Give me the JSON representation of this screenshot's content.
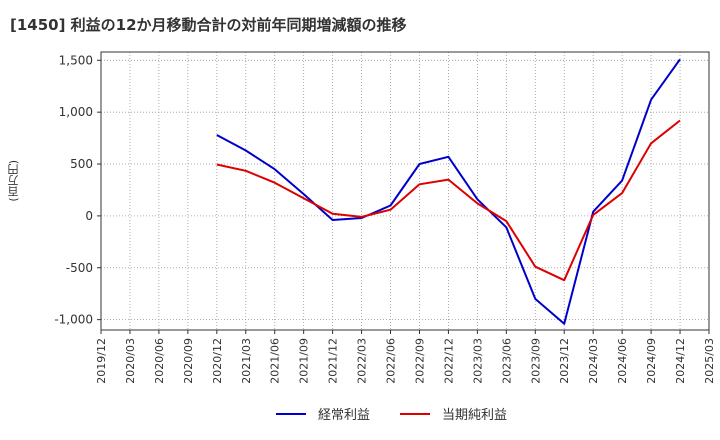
{
  "chart_data": {
    "type": "line",
    "title": "[1450]  利益の12か月移動合計の対前年同期増減額の推移",
    "xlabel": "",
    "ylabel": "(百万円)",
    "ylim": [
      -1100,
      1580
    ],
    "yticks": [
      -1000,
      -500,
      0,
      500,
      1000,
      1500
    ],
    "ytick_labels": [
      "-1,000",
      "-500",
      "0",
      "500",
      "1,000",
      "1,500"
    ],
    "categories": [
      "2019/12",
      "2020/03",
      "2020/06",
      "2020/09",
      "2020/12",
      "2021/03",
      "2021/06",
      "2021/09",
      "2021/12",
      "2022/03",
      "2022/06",
      "2022/09",
      "2022/12",
      "2023/03",
      "2023/06",
      "2023/09",
      "2023/12",
      "2024/03",
      "2024/06",
      "2024/09",
      "2024/12",
      "2025/03"
    ],
    "grid": true,
    "legend_position": "bottom-center",
    "series": [
      {
        "name": "経常利益",
        "color": "#0000cc",
        "values": [
          null,
          null,
          null,
          null,
          780,
          630,
          450,
          210,
          -40,
          -20,
          100,
          500,
          570,
          160,
          -110,
          -800,
          -1040,
          40,
          340,
          1120,
          1510,
          null
        ]
      },
      {
        "name": "当期純利益",
        "color": "#dd0000",
        "values": [
          null,
          null,
          null,
          null,
          495,
          435,
          320,
          170,
          20,
          -10,
          60,
          305,
          350,
          120,
          -50,
          -490,
          -620,
          10,
          220,
          700,
          920,
          null
        ]
      }
    ]
  }
}
